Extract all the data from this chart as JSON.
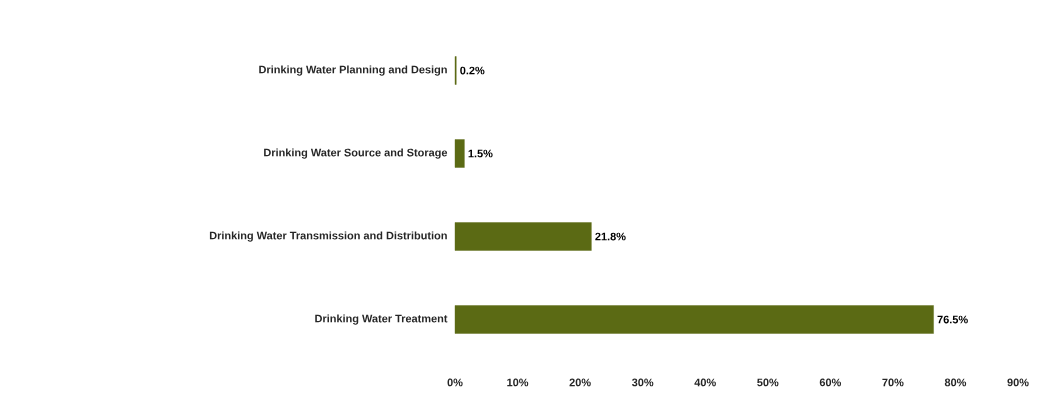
{
  "chart_data": {
    "type": "bar",
    "orientation": "horizontal",
    "categories": [
      "Drinking Water Planning and Design",
      "Drinking Water Source and Storage",
      "Drinking Water Transmission and Distribution",
      "Drinking Water Treatment"
    ],
    "values": [
      0.2,
      1.5,
      21.8,
      76.5
    ],
    "value_labels": [
      "0.2%",
      "1.5%",
      "21.8%",
      "76.5%"
    ],
    "color": "#5b6a14",
    "xlim": [
      0,
      90
    ],
    "xticks": [
      {
        "value": 0,
        "label": "0%"
      },
      {
        "value": 10,
        "label": "10%"
      },
      {
        "value": 20,
        "label": "20%"
      },
      {
        "value": 30,
        "label": "30%"
      },
      {
        "value": 40,
        "label": "40%"
      },
      {
        "value": 50,
        "label": "50%"
      },
      {
        "value": 60,
        "label": "60%"
      },
      {
        "value": 70,
        "label": "70%"
      },
      {
        "value": 80,
        "label": "80%"
      },
      {
        "value": 90,
        "label": "90%"
      }
    ],
    "grid": false
  }
}
